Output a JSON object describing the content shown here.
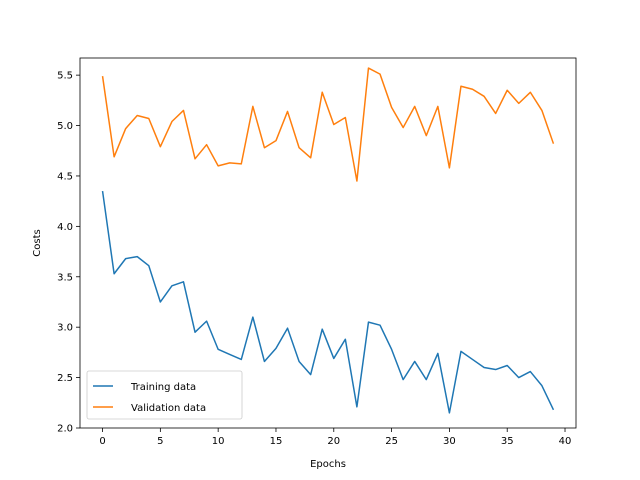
{
  "chart_data": {
    "type": "line",
    "title": "",
    "xlabel": "Epochs",
    "ylabel": "Costs",
    "xlim": [
      -1.95,
      40.95
    ],
    "ylim": [
      2.0,
      5.67
    ],
    "xticks": [
      0,
      5,
      10,
      15,
      20,
      25,
      30,
      35,
      40
    ],
    "yticks": [
      2.0,
      2.5,
      3.0,
      3.5,
      4.0,
      4.5,
      5.0,
      5.5
    ],
    "xtick_labels": [
      "0",
      "5",
      "10",
      "15",
      "20",
      "25",
      "30",
      "35",
      "40"
    ],
    "ytick_labels": [
      "2.0",
      "2.5",
      "3.0",
      "3.5",
      "4.0",
      "4.5",
      "5.0",
      "5.5"
    ],
    "grid": false,
    "legend_position": "lower-left",
    "x": [
      0,
      1,
      2,
      3,
      4,
      5,
      6,
      7,
      8,
      9,
      10,
      11,
      12,
      13,
      14,
      15,
      16,
      17,
      18,
      19,
      20,
      21,
      22,
      23,
      24,
      25,
      26,
      27,
      28,
      29,
      30,
      31,
      32,
      33,
      34,
      35,
      36,
      37,
      38,
      39
    ],
    "series": [
      {
        "name": "Training data",
        "color": "#1f77b4",
        "values": [
          4.35,
          3.53,
          3.68,
          3.7,
          3.61,
          3.25,
          3.41,
          3.45,
          2.95,
          3.06,
          2.78,
          2.73,
          2.68,
          3.1,
          2.66,
          2.79,
          2.99,
          2.66,
          2.53,
          2.98,
          2.69,
          2.88,
          2.21,
          3.05,
          3.02,
          2.78,
          2.48,
          2.66,
          2.48,
          2.74,
          2.15,
          2.76,
          2.68,
          2.6,
          2.58,
          2.62,
          2.5,
          2.56,
          2.42,
          2.18
        ]
      },
      {
        "name": "Validation data",
        "color": "#ff7f0e",
        "values": [
          5.49,
          4.69,
          4.97,
          5.1,
          5.07,
          4.79,
          5.04,
          5.15,
          4.67,
          4.81,
          4.6,
          4.63,
          4.62,
          5.19,
          4.78,
          4.85,
          5.14,
          4.78,
          4.68,
          5.33,
          5.01,
          5.08,
          4.45,
          5.57,
          5.51,
          5.18,
          4.98,
          5.19,
          4.9,
          5.19,
          4.58,
          5.39,
          5.36,
          5.29,
          5.12,
          5.35,
          5.22,
          5.33,
          5.15,
          4.82
        ]
      }
    ]
  }
}
